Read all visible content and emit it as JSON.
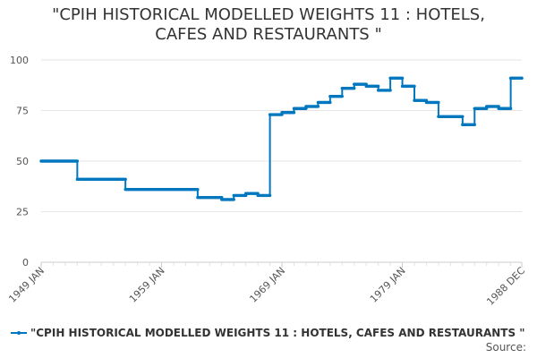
{
  "chart_data": {
    "type": "line",
    "title_lines": [
      "\"CPIH HISTORICAL MODELLED WEIGHTS 11 : HOTELS,",
      "CAFES AND RESTAURANTS \""
    ],
    "xlabel": "",
    "ylabel": "",
    "x_range": [
      1949.0,
      1988.92
    ],
    "ylim": [
      0,
      100
    ],
    "y_ticks": [
      0,
      25,
      50,
      75,
      100
    ],
    "x_ticks": [
      {
        "label": "1949 JAN",
        "value": 1949.0
      },
      {
        "label": "1959 JAN",
        "value": 1959.0
      },
      {
        "label": "1969 JAN",
        "value": 1969.0
      },
      {
        "label": "1979 JAN",
        "value": 1979.0
      },
      {
        "label": "1988 DEC",
        "value": 1988.92
      }
    ],
    "grid": true,
    "legend_position": "bottom-left",
    "series": [
      {
        "name": "\"CPIH HISTORICAL MODELLED WEIGHTS 11 : HOTELS, CAFES AND RESTAURANTS \"",
        "color": "#0077be",
        "steps": [
          {
            "year": 1949,
            "value": 50
          },
          {
            "year": 1952,
            "value": 41
          },
          {
            "year": 1956,
            "value": 36
          },
          {
            "year": 1962,
            "value": 32
          },
          {
            "year": 1964,
            "value": 31
          },
          {
            "year": 1965,
            "value": 33
          },
          {
            "year": 1966,
            "value": 34
          },
          {
            "year": 1967,
            "value": 33
          },
          {
            "year": 1968,
            "value": 73
          },
          {
            "year": 1969,
            "value": 74
          },
          {
            "year": 1970,
            "value": 76
          },
          {
            "year": 1971,
            "value": 77
          },
          {
            "year": 1972,
            "value": 79
          },
          {
            "year": 1973,
            "value": 82
          },
          {
            "year": 1974,
            "value": 86
          },
          {
            "year": 1975,
            "value": 88
          },
          {
            "year": 1976,
            "value": 87
          },
          {
            "year": 1977,
            "value": 85
          },
          {
            "year": 1978,
            "value": 91
          },
          {
            "year": 1979,
            "value": 87
          },
          {
            "year": 1980,
            "value": 80
          },
          {
            "year": 1981,
            "value": 79
          },
          {
            "year": 1982,
            "value": 72
          },
          {
            "year": 1984,
            "value": 68
          },
          {
            "year": 1985,
            "value": 76
          },
          {
            "year": 1986,
            "value": 77
          },
          {
            "year": 1987,
            "value": 76
          },
          {
            "year": 1988,
            "value": 91
          }
        ]
      }
    ]
  },
  "legend": {
    "label": "\"CPIH HISTORICAL MODELLED WEIGHTS 11 : HOTELS, CAFES AND RESTAURANTS \""
  },
  "source": {
    "label": "Source:"
  }
}
